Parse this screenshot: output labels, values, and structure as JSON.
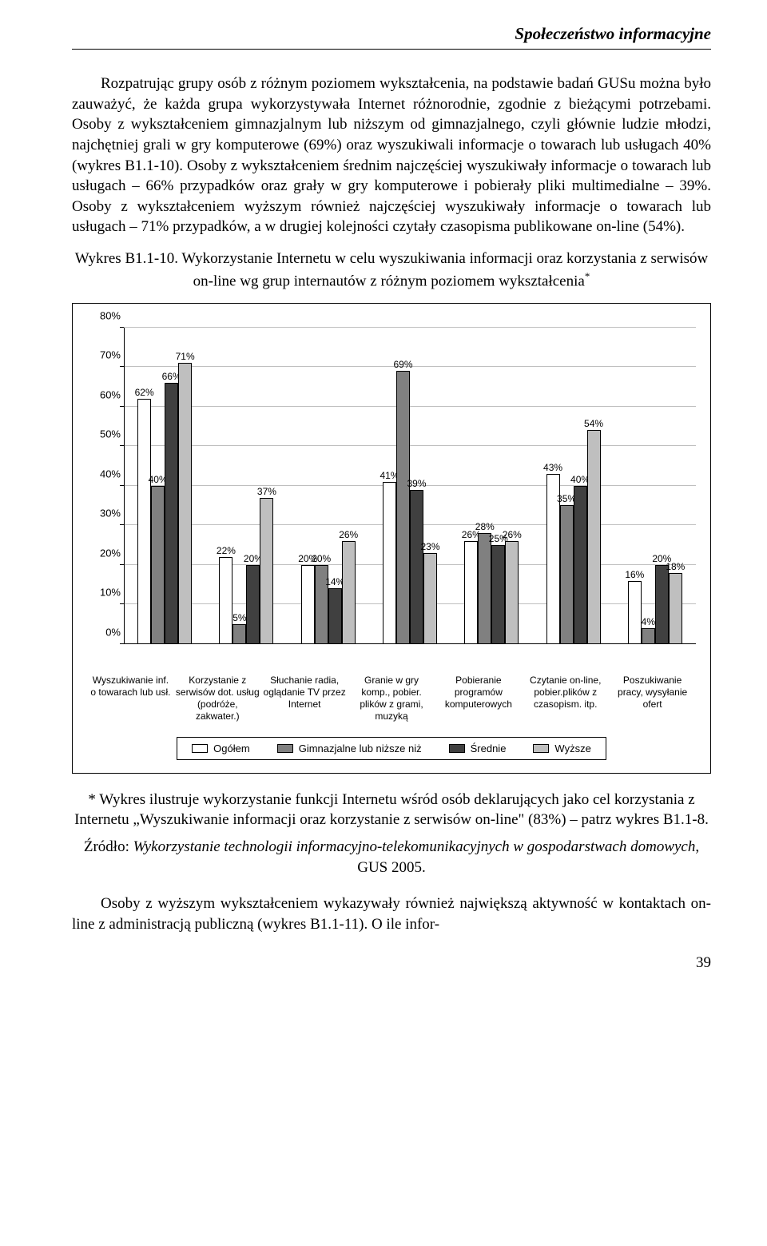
{
  "header": {
    "title": "Społeczeństwo informacyjne"
  },
  "paragraphs": {
    "p1": "Rozpatrując grupy osób z różnym poziomem wykształcenia, na podstawie badań GUSu można było zauważyć, że każda grupa wykorzystywała Internet różnorodnie, zgodnie z bieżącymi potrzebami. Osoby z wykształceniem gimnazjalnym lub niższym od gimnazjalnego, czyli głównie ludzie młodzi, najchętniej grali w gry komputerowe (69%) oraz wyszukiwali informacje o towarach lub usługach 40% (wykres B1.1-10). Osoby z wykształceniem średnim najczęściej wyszukiwały informacje o towarach lub usługach – 66% przypadków oraz grały w gry komputerowe i pobierały pliki multimedialne – 39%. Osoby z wykształceniem wyższym również najczęściej wyszukiwały informacje o towarach lub usługach – 71% przypadków, a w drugiej kolejności czytały czasopisma publikowane on-line (54%).",
    "caption_a": "Wykres B1.1-10. Wykorzystanie Internetu w celu wyszukiwania informacji oraz korzystania z serwisów on-line wg grup internautów z różnym poziomem wykształcenia",
    "caption_sup": "*",
    "footnote": "* Wykres ilustruje wykorzystanie funkcji Internetu wśród osób deklarujących jako cel korzystania z Internetu „Wyszukiwanie informacji oraz korzystanie z serwisów on-line\" (83%) – patrz wykres B1.1-8.",
    "source_label": "Źródło: ",
    "source_ital": "Wykorzystanie technologii informacyjno-telekomunikacyjnych w gospodarstwach domowych",
    "source_tail": ", GUS 2005.",
    "p2": "Osoby z wyższym wykształceniem wykazywały również największą aktywność w kontaktach on-line z administracją publiczną (wykres B1.1-11). O ile infor-"
  },
  "chart": {
    "y_max": 80,
    "y_step": 10,
    "y_ticks": [
      "0%",
      "10%",
      "20%",
      "30%",
      "40%",
      "50%",
      "60%",
      "70%",
      "80%"
    ],
    "series_colors": [
      "#ffffff",
      "#808080",
      "#404040",
      "#bfbfbf"
    ],
    "legend": [
      "Ogółem",
      "Gimnazjalne lub niższe niż",
      "Średnie",
      "Wyższe"
    ],
    "categories": [
      "Wyszukiwanie inf. o towarach lub usł.",
      "Korzystanie z serwisów dot. usług (podróże, zakwater.)",
      "Słuchanie radia, oglądanie TV przez Internet",
      "Granie w gry komp., pobier. plików z grami, muzyką",
      "Pobieranie programów komputerowych",
      "Czytanie on-line, pobier.plików z czasopism. itp.",
      "Poszukiwanie pracy, wysyłanie ofert"
    ],
    "data": [
      [
        62,
        40,
        66,
        71
      ],
      [
        22,
        5,
        20,
        37
      ],
      [
        20,
        20,
        14,
        26
      ],
      [
        41,
        69,
        39,
        23
      ],
      [
        26,
        28,
        25,
        26
      ],
      [
        43,
        35,
        40,
        54
      ],
      [
        16,
        4,
        20,
        18
      ]
    ],
    "labels": [
      [
        "62%",
        "40%",
        "66%",
        "71%"
      ],
      [
        "22%",
        "5%",
        "20%",
        "37%"
      ],
      [
        "20%",
        "20%",
        "14%",
        "26%"
      ],
      [
        "41%",
        "69%",
        "39%",
        "23%"
      ],
      [
        "26%",
        "28%",
        "25%",
        "26%"
      ],
      [
        "43%",
        "35%",
        "40%",
        "54%"
      ],
      [
        "16%",
        "4%",
        "20%",
        "18%"
      ]
    ]
  },
  "pagenum": "39"
}
